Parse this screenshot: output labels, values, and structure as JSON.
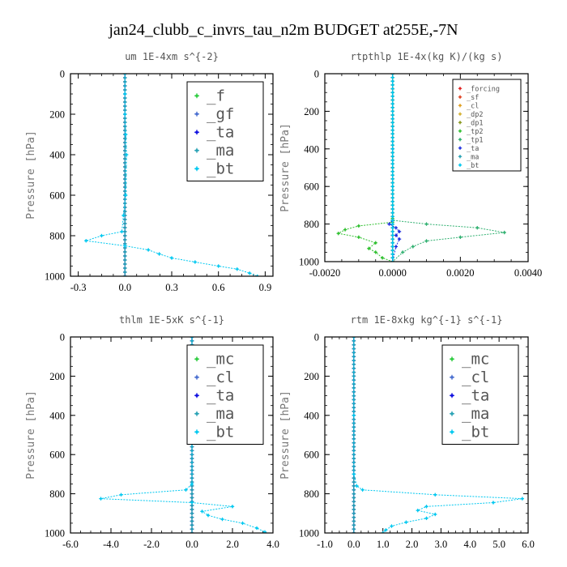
{
  "figure_title": "jan24_clubb_c_invrs_tau_n2m  BUDGET at255E,-7N",
  "chart_data": [
    {
      "type": "line",
      "title": "um   1E-4xm s^{-2}",
      "ylabel": "Pressure [hPa]",
      "xlim": [
        -0.35,
        0.95
      ],
      "ylim": [
        1000,
        0
      ],
      "xticks": [
        -0.3,
        0.0,
        0.3,
        0.6,
        0.9
      ],
      "xtick_labels": [
        "-0.3",
        "0.0",
        "0.3",
        "0.6",
        "0.9"
      ],
      "yticks": [
        0,
        200,
        400,
        600,
        800,
        1000
      ],
      "ytick_labels": [
        "0",
        "200",
        "400",
        "600",
        "800",
        "1000"
      ],
      "legend_position": "top-right",
      "legend_size": "large",
      "series": [
        {
          "name": "_f",
          "color": "#2ecc40",
          "x": [
            0,
            0
          ],
          "y": [
            0,
            1000
          ]
        },
        {
          "name": "_gf",
          "color": "#4a6fd0",
          "x": [
            0,
            0
          ],
          "y": [
            0,
            1000
          ]
        },
        {
          "name": "_ta",
          "color": "#1010e0",
          "x": [
            0,
            0
          ],
          "y": [
            0,
            1000
          ]
        },
        {
          "name": "_ma",
          "color": "#2aa3b5",
          "x": [
            0,
            0
          ],
          "y": [
            0,
            1000
          ]
        },
        {
          "name": "_bt",
          "color": "#00c8f0",
          "x": [
            0.0,
            0.0,
            0.0,
            0.005,
            0.01,
            0.005,
            -0.01,
            -0.02,
            -0.15,
            -0.25,
            0.0,
            0.15,
            0.22,
            0.3,
            0.45,
            0.6,
            0.72,
            0.8,
            0.85
          ],
          "y": [
            0,
            100,
            200,
            300,
            400,
            600,
            700,
            780,
            800,
            825,
            850,
            870,
            890,
            910,
            930,
            950,
            965,
            985,
            1000
          ]
        }
      ]
    },
    {
      "type": "line",
      "title": "rtpthlp   1E-4x(kg K)/(kg s)",
      "ylabel": "Pressure [hPa]",
      "xlim": [
        -0.002,
        0.004
      ],
      "ylim": [
        1000,
        0
      ],
      "xticks": [
        -0.002,
        0.0,
        0.002,
        0.004
      ],
      "xtick_labels": [
        "-0.0020",
        "0.0000",
        "0.0020",
        "0.0040"
      ],
      "yticks": [
        0,
        200,
        400,
        600,
        800,
        1000
      ],
      "ytick_labels": [
        "0",
        "200",
        "400",
        "600",
        "800",
        "1000"
      ],
      "legend_position": "top-right",
      "legend_size": "small",
      "series": [
        {
          "name": "_forcing",
          "color": "#e02020",
          "x": [
            0,
            0
          ],
          "y": [
            0,
            1000
          ]
        },
        {
          "name": "_sf",
          "color": "#e04020",
          "x": [
            0,
            0
          ],
          "y": [
            0,
            1000
          ]
        },
        {
          "name": "_cl",
          "color": "#e0a020",
          "x": [
            0,
            0
          ],
          "y": [
            0,
            1000
          ]
        },
        {
          "name": "_dp2",
          "color": "#d4b030",
          "x": [
            0,
            0
          ],
          "y": [
            0,
            1000
          ]
        },
        {
          "name": "_dp1",
          "color": "#8a9a20",
          "x": [
            0,
            0
          ],
          "y": [
            0,
            1000
          ]
        },
        {
          "name": "_tp2",
          "color": "#30c030",
          "x": [
            0.0,
            0.0,
            0.0,
            0.0,
            0.0,
            -0.001,
            -0.0014,
            -0.0016,
            -0.001,
            -0.0005,
            -0.0007,
            -0.0005,
            -0.0003,
            0.0
          ],
          "y": [
            0,
            400,
            700,
            770,
            790,
            810,
            830,
            850,
            870,
            900,
            930,
            950,
            980,
            1000
          ]
        },
        {
          "name": "_tp1",
          "color": "#30b070",
          "x": [
            0.0,
            0.0,
            0.0,
            0.0,
            0.001,
            0.0025,
            0.0033,
            0.002,
            0.001,
            0.0006,
            0.0003,
            0.0
          ],
          "y": [
            0,
            400,
            700,
            780,
            800,
            820,
            845,
            870,
            890,
            920,
            950,
            1000
          ]
        },
        {
          "name": "_ta",
          "color": "#2030e0",
          "x": [
            0.0,
            0.0,
            0.0,
            -0.0001,
            0.0001,
            0.0002,
            0.0001,
            0.0002,
            0.0001,
            0.0
          ],
          "y": [
            0,
            400,
            780,
            800,
            820,
            840,
            860,
            880,
            920,
            1000
          ]
        },
        {
          "name": "_ma",
          "color": "#2aa3b5",
          "x": [
            0,
            0
          ],
          "y": [
            0,
            1000
          ]
        },
        {
          "name": "_bt",
          "color": "#00c8f0",
          "x": [
            0,
            0
          ],
          "y": [
            0,
            1000
          ]
        }
      ]
    },
    {
      "type": "line",
      "title": "thlm   1E-5xK s^{-1}",
      "ylabel": "Pressure [hPa]",
      "xlim": [
        -6,
        4
      ],
      "ylim": [
        1000,
        0
      ],
      "xticks": [
        -6,
        -4,
        -2,
        0,
        2,
        4
      ],
      "xtick_labels": [
        "-6.0",
        "-4.0",
        "-2.0",
        "0.0",
        "2.0",
        "4.0"
      ],
      "yticks": [
        0,
        200,
        400,
        600,
        800,
        1000
      ],
      "ytick_labels": [
        "0",
        "200",
        "400",
        "600",
        "800",
        "1000"
      ],
      "legend_position": "top-right",
      "legend_size": "large",
      "series": [
        {
          "name": "_mc",
          "color": "#2ecc40",
          "x": [
            0,
            0
          ],
          "y": [
            0,
            1000
          ]
        },
        {
          "name": "_cl",
          "color": "#4a6fd0",
          "x": [
            0,
            0
          ],
          "y": [
            0,
            1000
          ]
        },
        {
          "name": "_ta",
          "color": "#1010e0",
          "x": [
            0,
            0
          ],
          "y": [
            0,
            1000
          ]
        },
        {
          "name": "_ma",
          "color": "#2aa3b5",
          "x": [
            0,
            0
          ],
          "y": [
            0,
            1000
          ]
        },
        {
          "name": "_bt",
          "color": "#00c8f0",
          "x": [
            0.0,
            0.0,
            0.0,
            -0.3,
            -3.5,
            -4.5,
            0.0,
            2.0,
            0.5,
            0.8,
            1.5,
            2.5,
            3.2,
            3.6
          ],
          "y": [
            0,
            400,
            750,
            780,
            805,
            825,
            845,
            865,
            890,
            910,
            930,
            950,
            975,
            995
          ]
        }
      ]
    },
    {
      "type": "line",
      "title": "rtm   1E-8xkg kg^{-1} s^{-1}",
      "ylabel": "Pressure [hPa]",
      "xlim": [
        -1,
        6
      ],
      "ylim": [
        1000,
        0
      ],
      "xticks": [
        -1,
        0,
        1,
        2,
        3,
        4,
        5,
        6
      ],
      "xtick_labels": [
        "-1.0",
        "0.0",
        "1.0",
        "2.0",
        "3.0",
        "4.0",
        "5.0",
        "6.0"
      ],
      "yticks": [
        0,
        200,
        400,
        600,
        800,
        1000
      ],
      "ytick_labels": [
        "0",
        "200",
        "400",
        "600",
        "800",
        "1000"
      ],
      "legend_position": "top-right",
      "legend_size": "large",
      "series": [
        {
          "name": "_mc",
          "color": "#2ecc40",
          "x": [
            0,
            0
          ],
          "y": [
            0,
            1000
          ]
        },
        {
          "name": "_cl",
          "color": "#4a6fd0",
          "x": [
            0,
            0
          ],
          "y": [
            0,
            1000
          ]
        },
        {
          "name": "_ta",
          "color": "#1010e0",
          "x": [
            0,
            0
          ],
          "y": [
            0,
            1000
          ]
        },
        {
          "name": "_ma",
          "color": "#2aa3b5",
          "x": [
            0,
            0
          ],
          "y": [
            0,
            1000
          ]
        },
        {
          "name": "_bt",
          "color": "#00c8f0",
          "x": [
            0.0,
            0.0,
            0.0,
            0.1,
            0.3,
            2.8,
            5.8,
            4.8,
            2.5,
            2.2,
            2.8,
            2.5,
            1.8,
            1.3,
            1.1,
            1.0
          ],
          "y": [
            0,
            400,
            700,
            760,
            780,
            805,
            825,
            845,
            865,
            885,
            905,
            925,
            945,
            965,
            985,
            1000
          ]
        }
      ]
    }
  ]
}
